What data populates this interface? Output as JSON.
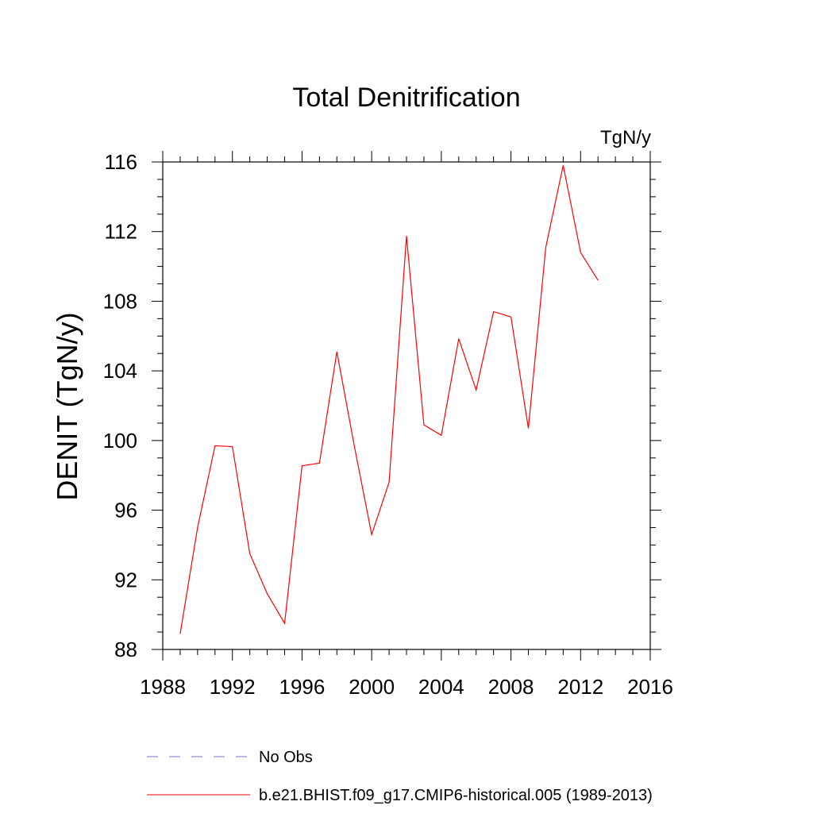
{
  "chart_data": {
    "type": "line",
    "title": "Total Denitrification",
    "units": "TgN/y",
    "ylabel": "DENIT  (TgN/y)",
    "xlabel": "",
    "xlim": [
      1988,
      2016
    ],
    "ylim": [
      88,
      116
    ],
    "xticks": [
      "1988",
      "1992",
      "1996",
      "2000",
      "2004",
      "2008",
      "2012",
      "2016"
    ],
    "yticks": [
      "88",
      "92",
      "96",
      "100",
      "104",
      "108",
      "112",
      "116"
    ],
    "grid": false,
    "legend_position": "bottom",
    "series": [
      {
        "name": "b.e21.BHIST.f09_g17.CMIP6-historical.005 (1989-2013)",
        "color": "#ff0000",
        "style": "solid",
        "x": [
          1989,
          1990,
          1991,
          1992,
          1993,
          1994,
          1995,
          1996,
          1997,
          1998,
          1999,
          2000,
          2001,
          2002,
          2003,
          2004,
          2005,
          2006,
          2007,
          2008,
          2009,
          2010,
          2011,
          2012,
          2013
        ],
        "values": [
          88.9,
          95.0,
          99.7,
          99.65,
          93.5,
          91.2,
          89.5,
          98.55,
          98.7,
          105.1,
          99.7,
          94.6,
          97.6,
          111.75,
          100.9,
          100.3,
          105.85,
          102.9,
          107.4,
          107.1,
          100.7,
          111.1,
          115.8,
          110.8,
          109.2
        ]
      }
    ],
    "legend": [
      {
        "label": "No Obs",
        "color": "#7a6fc4",
        "style": "dashed"
      },
      {
        "label": "b.e21.BHIST.f09_g17.CMIP6-historical.005 (1989-2013)",
        "color": "#ff0000",
        "style": "solid"
      }
    ]
  }
}
